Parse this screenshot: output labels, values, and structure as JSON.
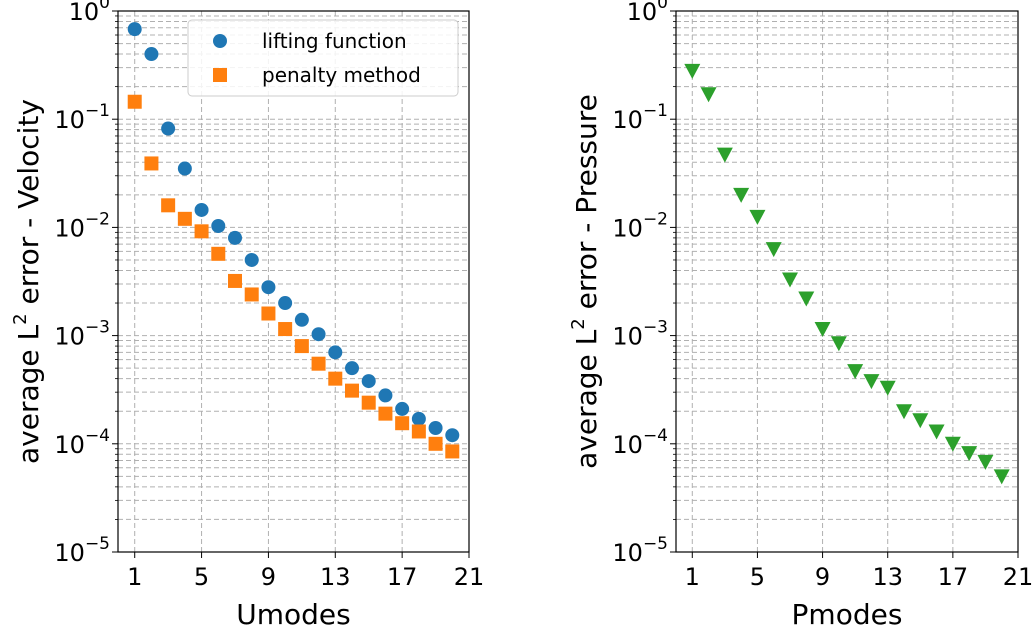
{
  "chart_data": [
    {
      "type": "scatter",
      "xlabel": "Umodes",
      "ylabel_parts": [
        "average L",
        "2",
        " error - Velocity"
      ],
      "yscale": "log",
      "ylim": [
        1e-05,
        1
      ],
      "xlim": [
        0,
        21
      ],
      "xticks": [
        1,
        5,
        9,
        13,
        17,
        21
      ],
      "yticks": [
        {
          "base": "10",
          "exp": "0",
          "value": 1
        },
        {
          "base": "10",
          "exp": "−1",
          "value": 0.1
        },
        {
          "base": "10",
          "exp": "−2",
          "value": 0.01
        },
        {
          "base": "10",
          "exp": "−3",
          "value": 0.001
        },
        {
          "base": "10",
          "exp": "−4",
          "value": 0.0001
        },
        {
          "base": "10",
          "exp": "−5",
          "value": 1e-05
        }
      ],
      "grid": true,
      "legend_position": "top-right",
      "x": [
        1,
        2,
        3,
        4,
        5,
        6,
        7,
        8,
        9,
        10,
        11,
        12,
        13,
        14,
        15,
        16,
        17,
        18,
        19,
        20
      ],
      "series": [
        {
          "name": "lifting function",
          "marker": "circle",
          "color": "#1f77b4",
          "values": [
            0.68,
            0.4,
            0.082,
            0.035,
            0.0145,
            0.0103,
            0.008,
            0.005,
            0.0028,
            0.002,
            0.0014,
            0.00103,
            0.0007,
            0.0005,
            0.00038,
            0.00028,
            0.00021,
            0.00017,
            0.00014,
            0.00012
          ]
        },
        {
          "name": "penalty method",
          "marker": "square",
          "color": "#ff7f0e",
          "values": [
            0.145,
            0.039,
            0.016,
            0.012,
            0.0092,
            0.0057,
            0.0032,
            0.0024,
            0.0016,
            0.00115,
            0.0008,
            0.00055,
            0.0004,
            0.00031,
            0.00024,
            0.00019,
            0.000155,
            0.00013,
            0.0001,
            8.5e-05
          ]
        }
      ]
    },
    {
      "type": "scatter",
      "xlabel": "Pmodes",
      "ylabel_parts": [
        "average L",
        "2",
        " error - Pressure"
      ],
      "yscale": "log",
      "ylim": [
        1e-05,
        1
      ],
      "xlim": [
        0,
        21
      ],
      "xticks": [
        1,
        5,
        9,
        13,
        17,
        21
      ],
      "yticks": [
        {
          "base": "10",
          "exp": "0",
          "value": 1
        },
        {
          "base": "10",
          "exp": "−1",
          "value": 0.1
        },
        {
          "base": "10",
          "exp": "−2",
          "value": 0.01
        },
        {
          "base": "10",
          "exp": "−3",
          "value": 0.001
        },
        {
          "base": "10",
          "exp": "−4",
          "value": 0.0001
        },
        {
          "base": "10",
          "exp": "−5",
          "value": 1e-05
        }
      ],
      "grid": true,
      "x": [
        1,
        2,
        3,
        4,
        5,
        6,
        7,
        8,
        9,
        10,
        11,
        12,
        13,
        14,
        15,
        16,
        17,
        18,
        19,
        20
      ],
      "series": [
        {
          "marker": "triangle-down",
          "color": "#2ca02c",
          "values": [
            0.28,
            0.17,
            0.047,
            0.02,
            0.0125,
            0.0063,
            0.0033,
            0.0022,
            0.00115,
            0.00085,
            0.00047,
            0.00038,
            0.00033,
            0.0002,
            0.000165,
            0.00013,
            0.0001,
            8.2e-05,
            6.8e-05,
            5e-05
          ]
        }
      ]
    }
  ]
}
